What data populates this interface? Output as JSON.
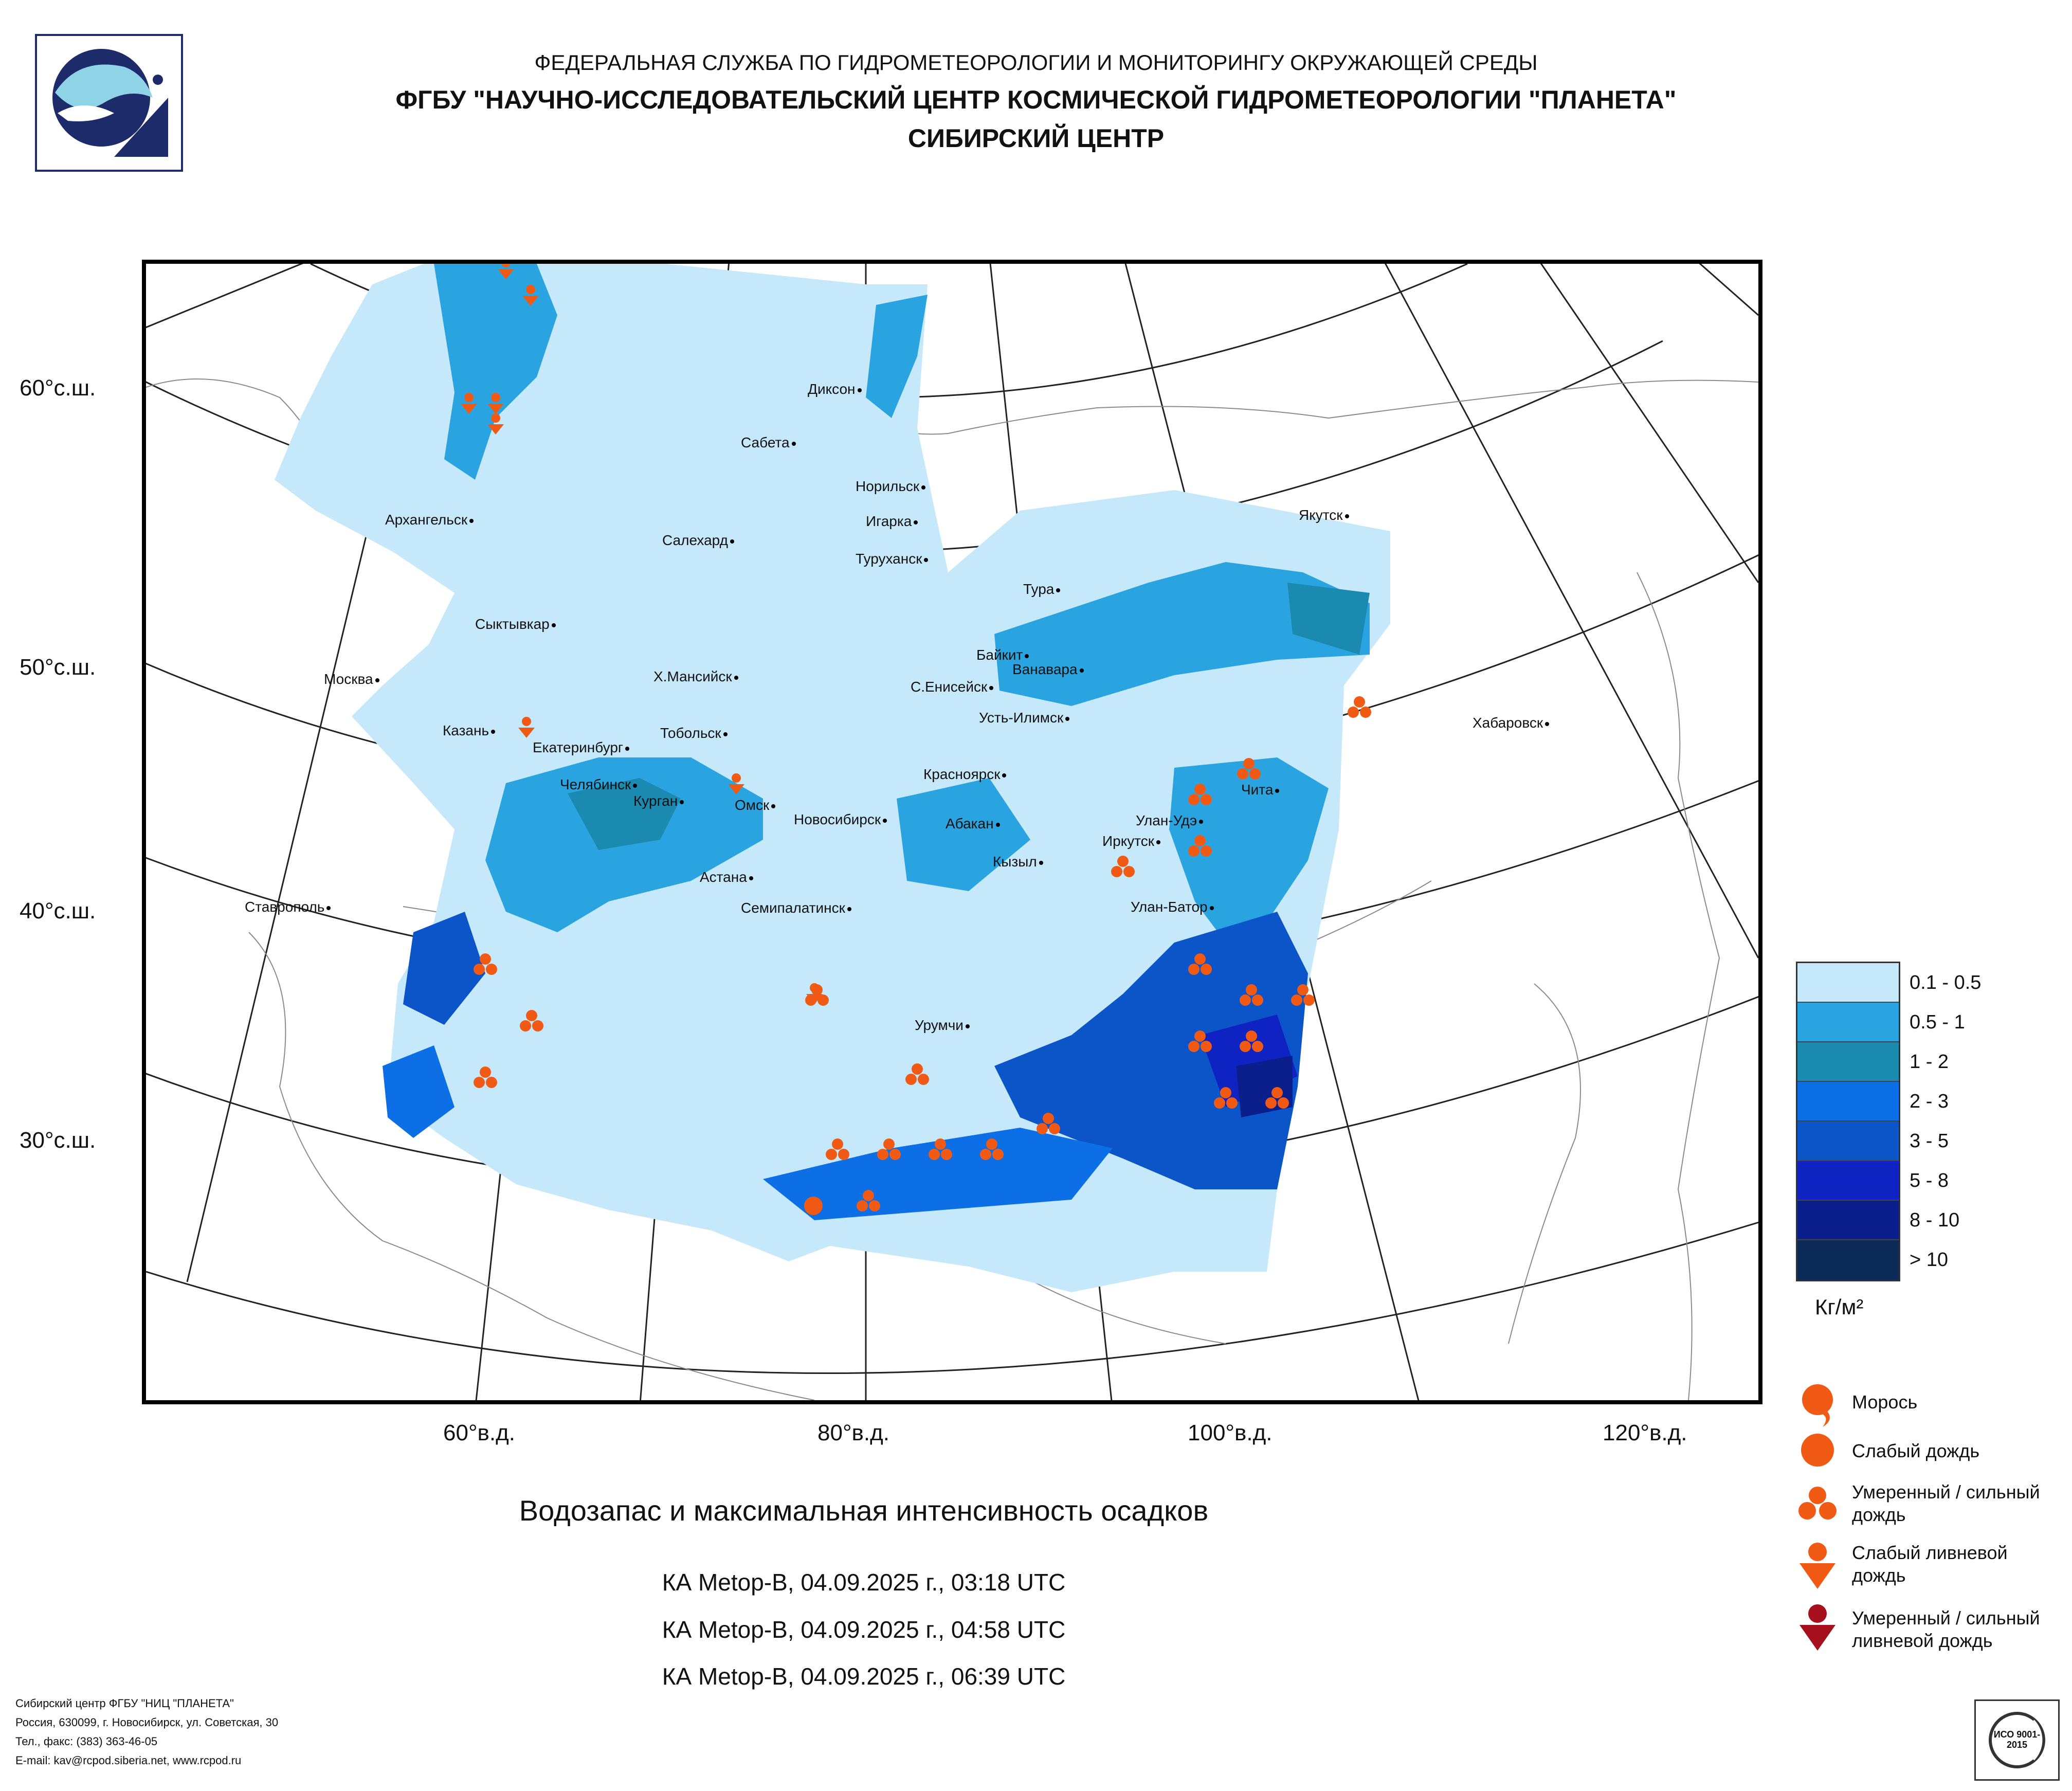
{
  "header": {
    "line1": "ФЕДЕРАЛЬНАЯ СЛУЖБА ПО ГИДРОМЕТЕОРОЛОГИИ И МОНИТОРИНГУ ОКРУЖАЮЩЕЙ СРЕДЫ",
    "line2": "ФГБУ \"НАУЧНО-ИССЛЕДОВАТЕЛЬСКИЙ ЦЕНТР КОСМИЧЕСКОЙ ГИДРОМЕТЕОРОЛОГИИ \"ПЛАНЕТА\"",
    "line3": "СИБИРСКИЙ ЦЕНТР"
  },
  "axes": {
    "lat_labels": [
      "60°с.ш.",
      "50°с.ш.",
      "40°с.ш.",
      "30°с.ш."
    ],
    "lon_labels": [
      "60°в.д.",
      "80°в.д.",
      "100°в.д.",
      "120°в.д."
    ]
  },
  "cities": [
    "Архангельск",
    "Диксон",
    "Сабета",
    "Норильск",
    "Игарка",
    "Салехард",
    "Туруханск",
    "Якутск",
    "Тура",
    "Сыктывкар",
    "Байкит",
    "Ванавара",
    "Москва",
    "Х.Мансийск",
    "С.Енисейск",
    "Усть-Илимск",
    "Хабаровск",
    "Казань",
    "Екатеринбург",
    "Тобольск",
    "Челябинск",
    "Курган",
    "Омск",
    "Новосибирск",
    "Красноярск",
    "Чита",
    "Абакан",
    "Улан-Удэ",
    "Иркутск",
    "Кызыл",
    "Ставрополь",
    "Астана",
    "Семипалатинск",
    "Улан-Батор",
    "Урумчи"
  ],
  "map_title": "Водозапас и максимальная интенсивность осадков",
  "passes": [
    "КА Metop-B, 04.09.2025 г., 03:18 UTC",
    "КА Metop-B, 04.09.2025 г., 04:58 UTC",
    "КА Metop-B, 04.09.2025 г., 06:39 UTC"
  ],
  "legend": {
    "classes": [
      {
        "label": "0.1 - 0.5",
        "color": "#c5e8fb"
      },
      {
        "label": "0.5 - 1",
        "color": "#2aa4e0"
      },
      {
        "label": "1 - 2",
        "color": "#1a8ab0"
      },
      {
        "label": "2 - 3",
        "color": "#0d6fe6"
      },
      {
        "label": "3 - 5",
        "color": "#0b55c9"
      },
      {
        "label": "5 - 8",
        "color": "#0f23c2"
      },
      {
        "label": "8 - 10",
        "color": "#0b1f8c"
      },
      {
        "label": "> 10",
        "color": "#0b2a55"
      }
    ],
    "unit": "Кг/м²",
    "symbols": [
      {
        "label": "Морось",
        "icon": "drizzle-icon",
        "color": "#f05a14"
      },
      {
        "label": "Слабый дождь",
        "icon": "light-rain-icon",
        "color": "#f05a14"
      },
      {
        "label": "Умеренный / сильный дождь",
        "icon": "moderate-rain-icon",
        "color": "#f05a14"
      },
      {
        "label": "Слабый ливневой дождь",
        "icon": "light-shower-icon",
        "color": "#f05a14"
      },
      {
        "label": "Умеренный / сильный ливневой дождь",
        "icon": "heavy-shower-icon",
        "color": "#a50f1e"
      }
    ]
  },
  "footer": {
    "line1": "Сибирский центр ФГБУ \"НИЦ \"ПЛАНЕТА\"",
    "line2": "Россия, 630099, г. Новосибирск, ул. Советская, 30",
    "line3": "Тел., факс: (383) 363-46-05",
    "line4": "E-mail: kav@rcpod.siberia.net, www.rcpod.ru"
  },
  "iso_badge": "ИСО 9001-2015"
}
